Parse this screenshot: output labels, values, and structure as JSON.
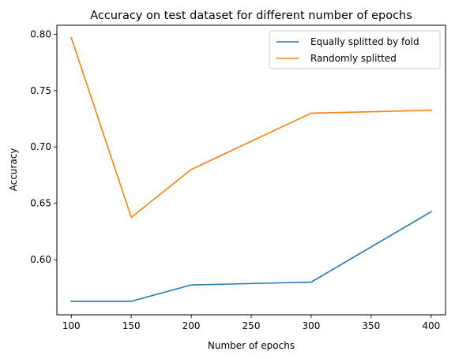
{
  "chart_data": {
    "type": "line",
    "title": "Accuracy on test dataset for different number of epochs",
    "xlabel": "Number of epochs",
    "ylabel": "Accuracy",
    "x": [
      100,
      150,
      200,
      300,
      400
    ],
    "xlim": [
      88,
      412
    ],
    "ylim": [
      0.551,
      0.808
    ],
    "xticks": [
      100,
      150,
      200,
      250,
      300,
      350,
      400
    ],
    "yticks": [
      0.6,
      0.65,
      0.7,
      0.75,
      0.8
    ],
    "xtick_labels": [
      "100",
      "150",
      "200",
      "250",
      "300",
      "350",
      "400"
    ],
    "ytick_labels": [
      "0.60",
      "0.65",
      "0.70",
      "0.75",
      "0.80"
    ],
    "grid": false,
    "legend_position": "upper right",
    "series": [
      {
        "name": "Equally splitted by fold",
        "color": "#1f77b4",
        "values": [
          0.563,
          0.563,
          0.5775,
          0.58,
          0.6425
        ]
      },
      {
        "name": "Randomly splitted",
        "color": "#ff7f0e",
        "values": [
          0.797,
          0.6375,
          0.68,
          0.73,
          0.7325
        ]
      }
    ]
  }
}
